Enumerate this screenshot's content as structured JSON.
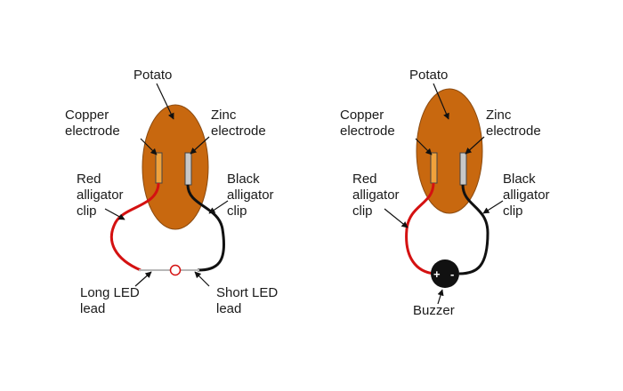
{
  "left": {
    "potato": "Potato",
    "copper": [
      "Copper",
      "electrode"
    ],
    "zinc": [
      "Zinc",
      "electrode"
    ],
    "red_clip": [
      "Red",
      "alligator",
      "clip"
    ],
    "black_clip": [
      "Black",
      "alligator",
      "clip"
    ],
    "long_lead": [
      "Long LED",
      "lead"
    ],
    "short_lead": [
      "Short LED",
      "lead"
    ]
  },
  "right": {
    "potato": "Potato",
    "copper": [
      "Copper",
      "electrode"
    ],
    "zinc": [
      "Zinc",
      "electrode"
    ],
    "red_clip": [
      "Red",
      "alligator",
      "clip"
    ],
    "black_clip": [
      "Black",
      "alligator",
      "clip"
    ],
    "buzzer": "Buzzer",
    "plus": "+",
    "minus": "-"
  },
  "colors": {
    "potato": "#c8680f",
    "copper": "#f0a23c",
    "zinc": "#c8c8c8",
    "red_wire": "#d41111",
    "black_wire": "#111111",
    "buzzer": "#111111"
  }
}
